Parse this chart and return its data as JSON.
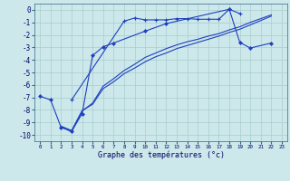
{
  "background_color": "#cce8ea",
  "grid_color": "#aacccc",
  "line_color": "#1f3fbf",
  "xlabel": "Graphe des températures (°c)",
  "ylim": [
    -10.5,
    0.5
  ],
  "xlim": [
    -0.5,
    23.5
  ],
  "yticks": [
    0,
    -1,
    -2,
    -3,
    -4,
    -5,
    -6,
    -7,
    -8,
    -9,
    -10
  ],
  "xticks": [
    0,
    1,
    2,
    3,
    4,
    5,
    6,
    7,
    8,
    9,
    10,
    11,
    12,
    13,
    14,
    15,
    16,
    17,
    18,
    19,
    20,
    21,
    22,
    23
  ],
  "line1_x": [
    3,
    8,
    9,
    10,
    11,
    12,
    13,
    14,
    15,
    16,
    17,
    18,
    19
  ],
  "line1_y": [
    -7.2,
    -0.9,
    -0.65,
    -0.8,
    -0.8,
    -0.8,
    -0.7,
    -0.7,
    -0.75,
    -0.75,
    -0.75,
    0.05,
    -0.3
  ],
  "line2_x": [
    0,
    1,
    2,
    3,
    4,
    5,
    6,
    7,
    10,
    12,
    18,
    19,
    20,
    22
  ],
  "line2_y": [
    -6.9,
    -7.2,
    -9.4,
    -9.7,
    -8.3,
    -3.65,
    -2.95,
    -2.65,
    -1.7,
    -1.1,
    0.05,
    -2.6,
    -3.05,
    -2.65
  ],
  "line3_x": [
    2,
    3,
    4,
    5,
    6,
    7,
    8,
    9,
    10,
    11,
    12,
    13,
    14,
    15,
    16,
    17,
    18,
    19,
    20,
    21,
    22
  ],
  "line3_y": [
    -9.35,
    -9.75,
    -8.1,
    -7.45,
    -6.1,
    -5.5,
    -4.85,
    -4.35,
    -3.8,
    -3.45,
    -3.1,
    -2.8,
    -2.55,
    -2.35,
    -2.1,
    -1.9,
    -1.6,
    -1.35,
    -1.0,
    -0.7,
    -0.4
  ],
  "line4_x": [
    2,
    3,
    4,
    5,
    6,
    7,
    8,
    9,
    10,
    11,
    12,
    13,
    14,
    15,
    16,
    17,
    18,
    19,
    20,
    21,
    22
  ],
  "line4_y": [
    -9.3,
    -9.65,
    -8.05,
    -7.55,
    -6.3,
    -5.75,
    -5.1,
    -4.65,
    -4.15,
    -3.75,
    -3.45,
    -3.1,
    -2.85,
    -2.6,
    -2.35,
    -2.1,
    -1.8,
    -1.55,
    -1.2,
    -0.85,
    -0.5
  ]
}
